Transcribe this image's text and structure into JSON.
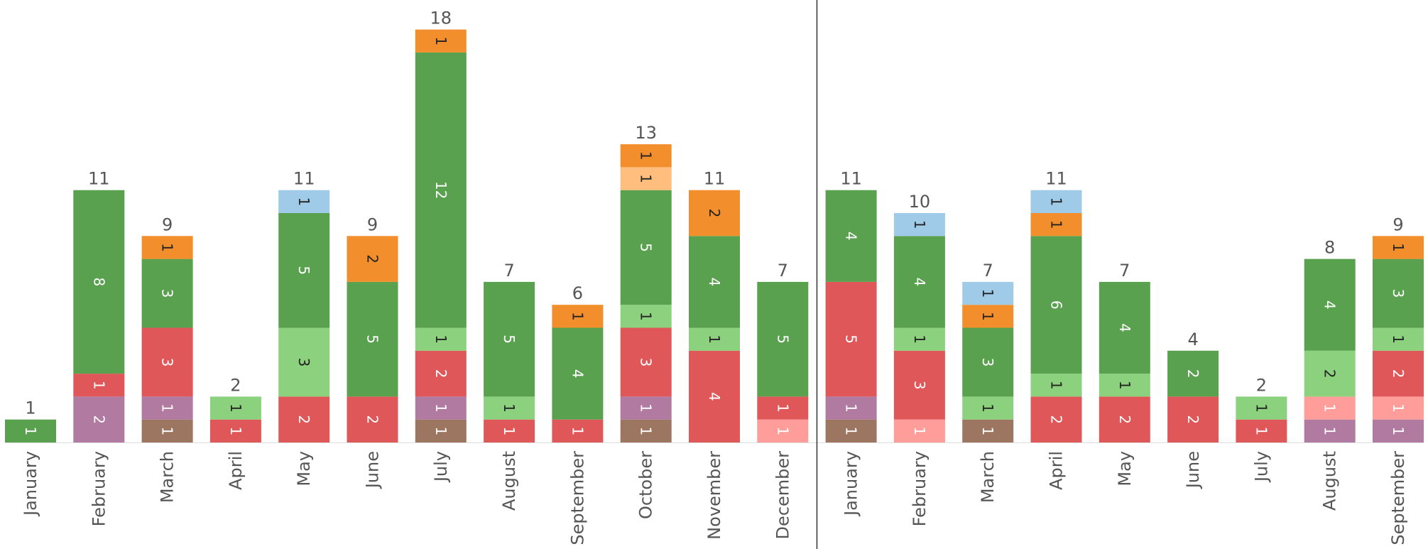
{
  "chart_data": {
    "type": "bar",
    "stacked": true,
    "title": "",
    "xlabel": "",
    "ylabel": "",
    "ylim": [
      0,
      18
    ],
    "grid": false,
    "legend": "none",
    "colors": {
      "c_brown": "#9c7660",
      "c_purple": "#b07aa1",
      "c_pink": "#ff9d9a",
      "c_red": "#e05759",
      "c_lgreen": "#8cd17d",
      "c_green": "#59a14f",
      "c_peach": "#ffbe7d",
      "c_orange": "#f28e2b",
      "c_blue": "#a0cbe8"
    },
    "series_order": [
      "c_brown",
      "c_purple",
      "c_pink",
      "c_red",
      "c_lgreen",
      "c_green",
      "c_peach",
      "c_orange",
      "c_blue"
    ],
    "categories": [
      "January",
      "February",
      "March",
      "April",
      "May",
      "June",
      "July",
      "August",
      "September",
      "October",
      "November",
      "December",
      "January",
      "February",
      "March",
      "April",
      "May",
      "June",
      "July",
      "August",
      "September"
    ],
    "divider_after_index": 11,
    "series": [
      {
        "color_key": "c_brown",
        "values": [
          0,
          0,
          1,
          0,
          0,
          0,
          1,
          0,
          0,
          1,
          0,
          0,
          1,
          0,
          1,
          0,
          0,
          0,
          0,
          0,
          0
        ]
      },
      {
        "color_key": "c_purple",
        "values": [
          0,
          2,
          1,
          0,
          0,
          0,
          1,
          0,
          0,
          1,
          0,
          0,
          1,
          0,
          0,
          0,
          0,
          0,
          0,
          1,
          1
        ]
      },
      {
        "color_key": "c_pink",
        "values": [
          0,
          0,
          0,
          0,
          0,
          0,
          0,
          0,
          0,
          0,
          0,
          1,
          0,
          1,
          0,
          0,
          0,
          0,
          0,
          1,
          1
        ]
      },
      {
        "color_key": "c_red",
        "values": [
          0,
          1,
          3,
          1,
          2,
          2,
          2,
          1,
          1,
          3,
          4,
          1,
          5,
          3,
          0,
          2,
          2,
          2,
          1,
          0,
          2
        ]
      },
      {
        "color_key": "c_lgreen",
        "values": [
          0,
          0,
          0,
          1,
          3,
          0,
          1,
          1,
          0,
          1,
          1,
          0,
          0,
          1,
          1,
          1,
          1,
          0,
          1,
          2,
          1
        ]
      },
      {
        "color_key": "c_green",
        "values": [
          1,
          8,
          3,
          0,
          5,
          5,
          12,
          5,
          4,
          5,
          4,
          5,
          4,
          4,
          3,
          6,
          4,
          2,
          0,
          4,
          3
        ]
      },
      {
        "color_key": "c_peach",
        "values": [
          0,
          0,
          0,
          0,
          0,
          0,
          0,
          0,
          0,
          1,
          0,
          0,
          0,
          0,
          0,
          0,
          0,
          0,
          0,
          0,
          0
        ]
      },
      {
        "color_key": "c_orange",
        "values": [
          0,
          0,
          1,
          0,
          0,
          2,
          1,
          0,
          1,
          1,
          2,
          0,
          0,
          0,
          1,
          1,
          0,
          0,
          0,
          0,
          1
        ]
      },
      {
        "color_key": "c_blue",
        "values": [
          0,
          0,
          0,
          0,
          1,
          0,
          0,
          0,
          0,
          0,
          0,
          0,
          0,
          1,
          1,
          1,
          0,
          0,
          0,
          0,
          0
        ]
      }
    ],
    "totals": [
      1,
      11,
      9,
      2,
      11,
      9,
      18,
      7,
      6,
      13,
      11,
      7,
      11,
      10,
      7,
      11,
      7,
      4,
      2,
      8,
      9
    ]
  }
}
